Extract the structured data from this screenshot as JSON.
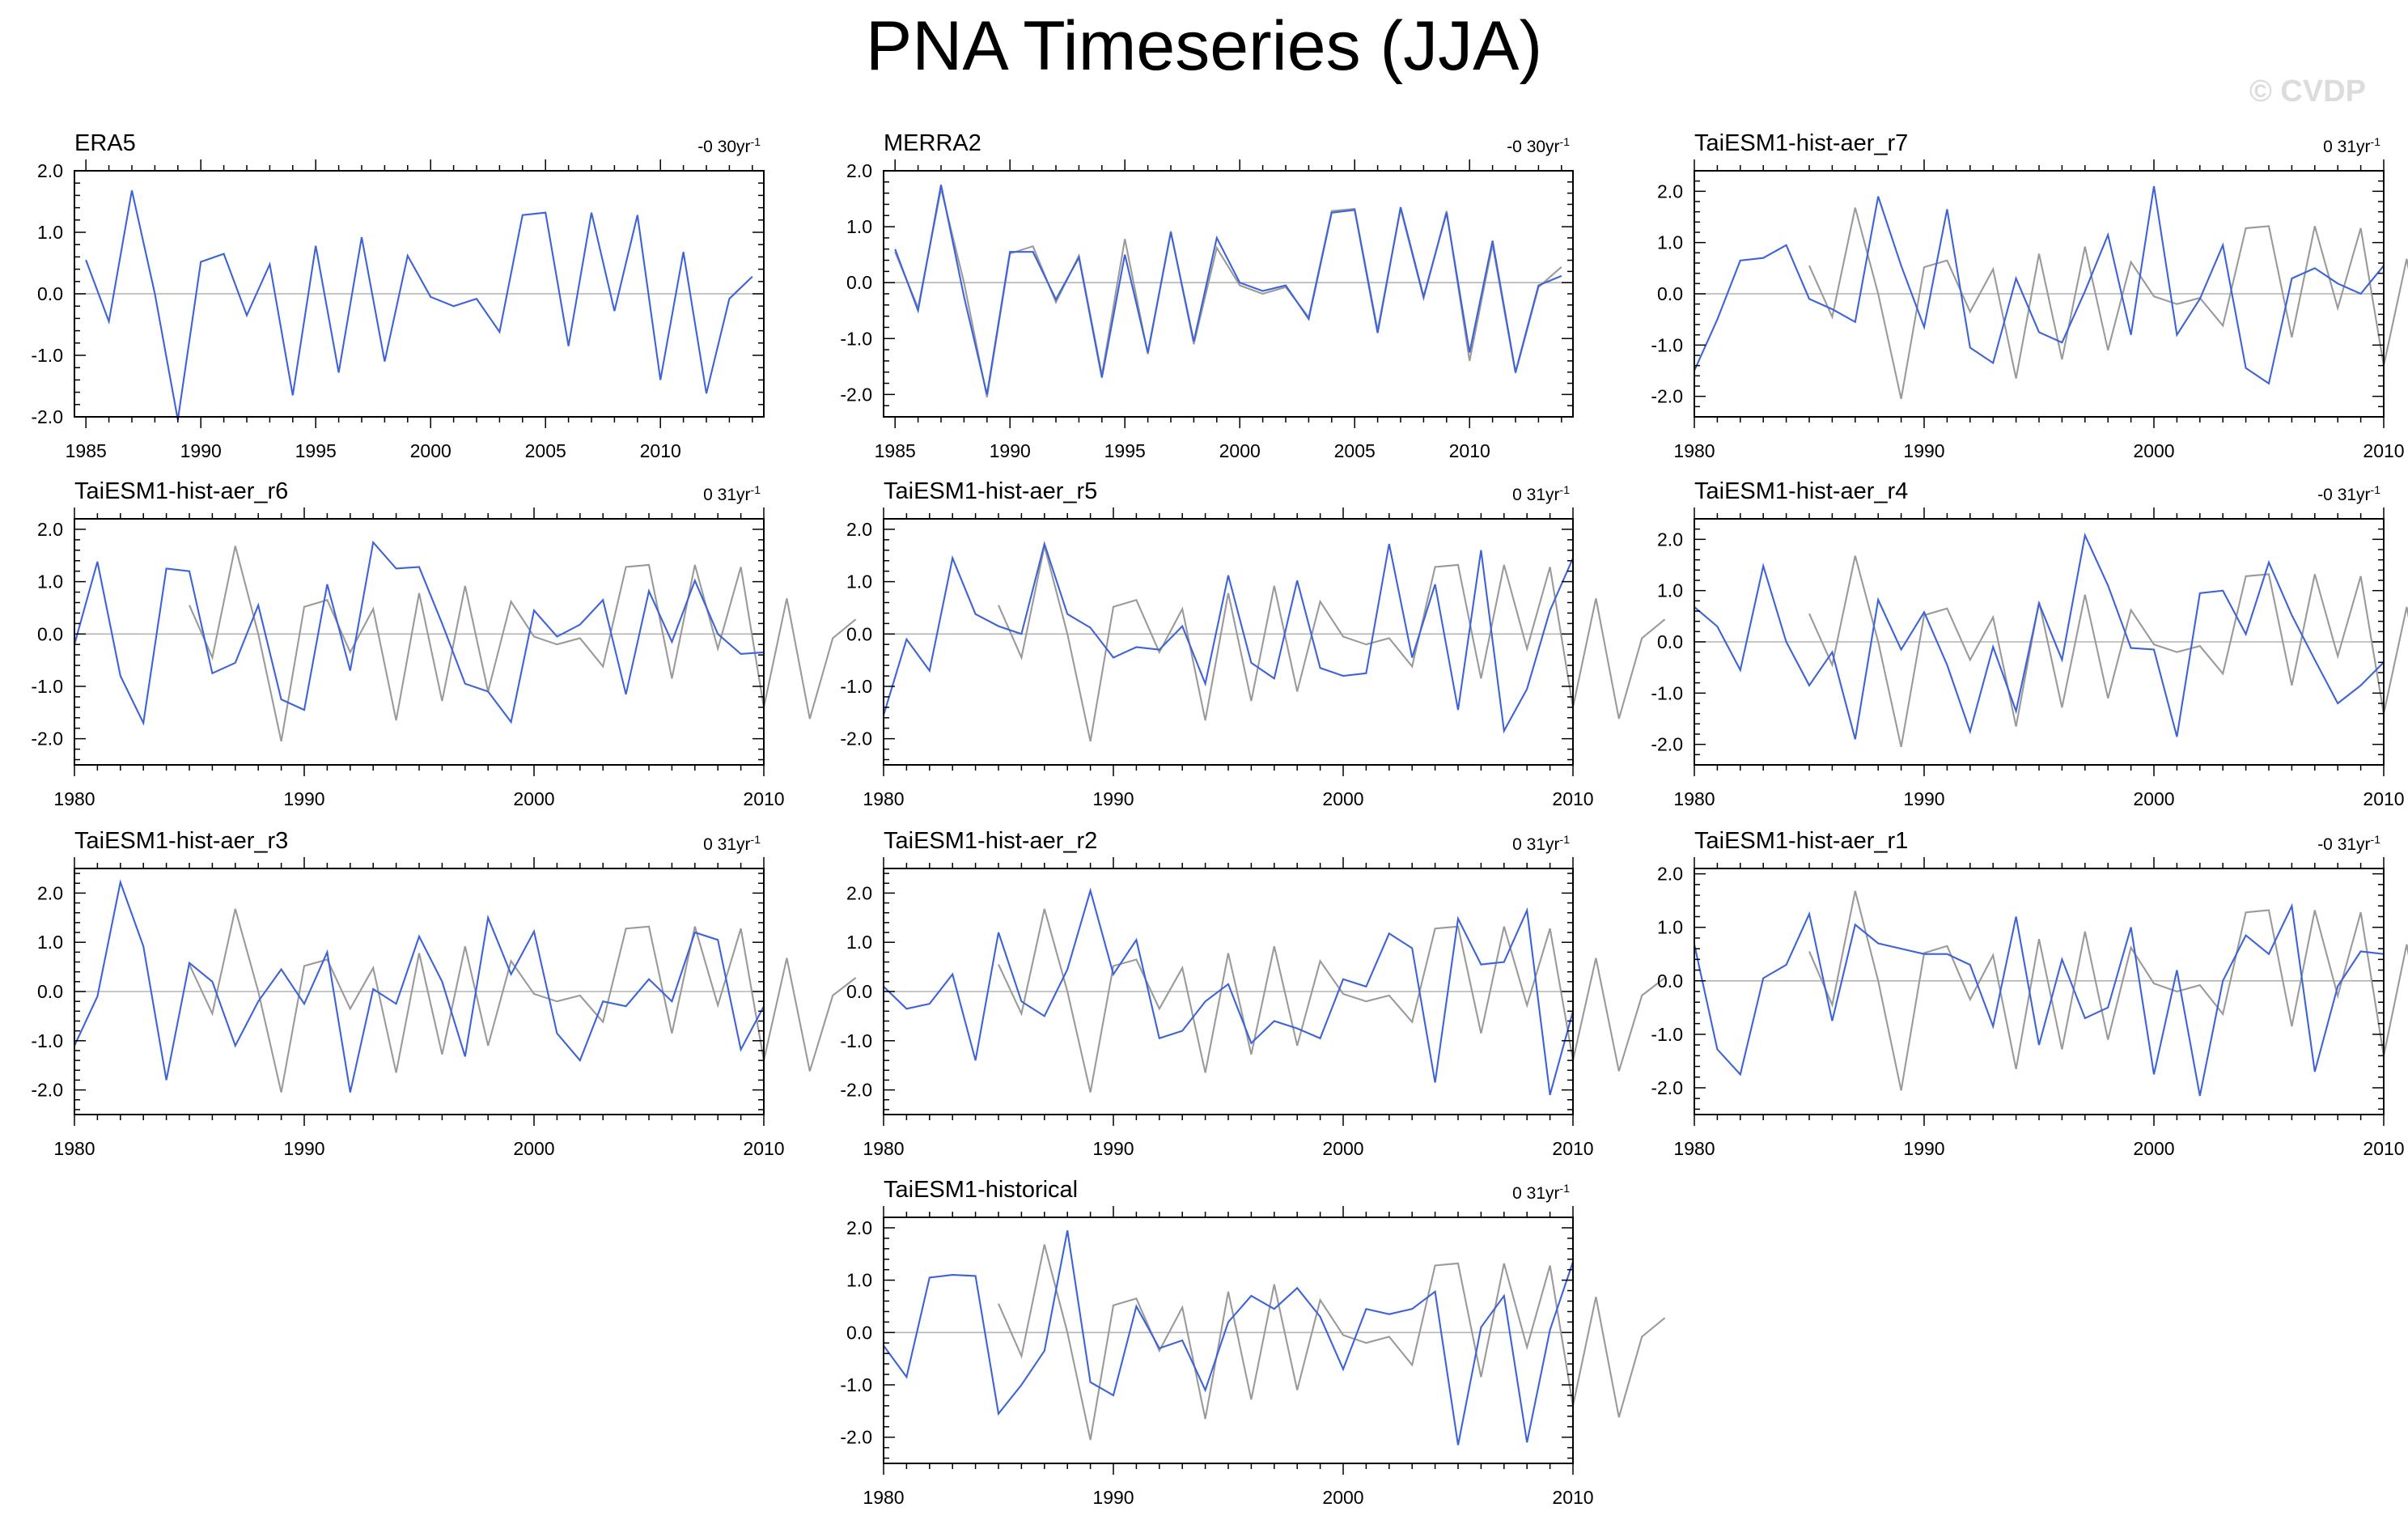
{
  "figure": {
    "title": "PNA Timeseries (JJA)",
    "watermark": "© CVDP",
    "colors": {
      "model_line": "#3d63d6",
      "obs_line": "#9a9a9a",
      "zero_line": "#b4b4b4",
      "axis": "#000000"
    }
  },
  "chart_data": [
    {
      "type": "line",
      "title": "ERA5",
      "trend_value": "-0 30yr",
      "trend_exp": "-1",
      "xlim": [
        1984.5,
        2014.5
      ],
      "ylim": [
        -2.0,
        2.0
      ],
      "xticks": [
        "1985",
        "1990",
        "1995",
        "2000",
        "2005",
        "2010"
      ],
      "yticks": [
        "2.0",
        "1.0",
        "0.0",
        "-1.0",
        "-2.0"
      ],
      "series": [
        {
          "name": "ERA5",
          "color": "#3d63d6",
          "start": 1985,
          "values": [
            0.55,
            -0.45,
            1.68,
            0.0,
            -2.05,
            0.52,
            0.65,
            -0.35,
            0.48,
            -1.65,
            0.78,
            -1.28,
            0.92,
            -1.1,
            0.62,
            -0.05,
            -0.2,
            -0.08,
            -0.62,
            1.28,
            1.32,
            -0.85,
            1.32,
            -0.28,
            1.28,
            -1.4,
            0.68,
            -1.62,
            -0.08,
            0.28
          ]
        }
      ]
    },
    {
      "type": "line",
      "title": "MERRA2",
      "trend_value": "-0 30yr",
      "trend_exp": "-1",
      "xlim": [
        1984.5,
        2014.5
      ],
      "ylim": [
        -2.4,
        2.0
      ],
      "xticks": [
        "1985",
        "1990",
        "1995",
        "2000",
        "2005",
        "2010"
      ],
      "yticks": [
        "2.0",
        "1.0",
        "0.0",
        "-1.0",
        "-2.0"
      ],
      "series": [
        {
          "name": "ERA5 (obs)",
          "color": "#9a9a9a",
          "start": 1985,
          "values": [
            0.55,
            -0.45,
            1.68,
            0.0,
            -2.05,
            0.52,
            0.65,
            -0.35,
            0.48,
            -1.65,
            0.78,
            -1.28,
            0.92,
            -1.1,
            0.62,
            -0.05,
            -0.2,
            -0.08,
            -0.62,
            1.28,
            1.32,
            -0.85,
            1.32,
            -0.28,
            1.28,
            -1.4,
            0.68,
            -1.62,
            -0.08,
            0.28
          ]
        },
        {
          "name": "MERRA2",
          "color": "#3d63d6",
          "start": 1985,
          "values": [
            0.6,
            -0.5,
            1.75,
            -0.25,
            -2.0,
            0.55,
            0.55,
            -0.3,
            0.45,
            -1.7,
            0.5,
            -1.25,
            0.9,
            -1.05,
            0.8,
            0.0,
            -0.15,
            -0.05,
            -0.65,
            1.25,
            1.3,
            -0.9,
            1.35,
            -0.25,
            1.25,
            -1.25,
            0.75,
            -1.6,
            -0.05,
            0.12
          ]
        }
      ]
    },
    {
      "type": "line",
      "title": "TaiESM1-hist-aer_r7",
      "trend_value": "0 31yr",
      "trend_exp": "-1",
      "xlim": [
        1980,
        2010
      ],
      "ylim": [
        -2.4,
        2.4
      ],
      "xticks": [
        "1980",
        "1990",
        "2000",
        "2010"
      ],
      "yticks": [
        "2.0",
        "1.0",
        "0.0",
        "-1.0",
        "-2.0"
      ],
      "series": [
        {
          "name": "ERA5 (obs)",
          "color": "#9a9a9a",
          "start": 1985,
          "values": [
            0.55,
            -0.45,
            1.68,
            0.0,
            -2.05,
            0.52,
            0.65,
            -0.35,
            0.48,
            -1.65,
            0.78,
            -1.28,
            0.92,
            -1.1,
            0.62,
            -0.05,
            -0.2,
            -0.08,
            -0.62,
            1.28,
            1.32,
            -0.85,
            1.32,
            -0.28,
            1.28,
            -1.4,
            0.68,
            -1.62,
            -0.08,
            0.28
          ]
        },
        {
          "name": "TaiESM1-hist-aer_r7",
          "color": "#3d63d6",
          "start": 1980,
          "values": [
            -1.5,
            -0.5,
            0.65,
            0.7,
            0.95,
            -0.1,
            -0.3,
            -0.55,
            1.9,
            0.55,
            -0.65,
            1.65,
            -1.05,
            -1.35,
            0.3,
            -0.75,
            -0.95,
            0.05,
            1.15,
            -0.8,
            2.1,
            -0.8,
            -0.1,
            0.95,
            -1.45,
            -1.75,
            0.3,
            0.5,
            0.2,
            0.0,
            0.55
          ]
        }
      ]
    },
    {
      "type": "line",
      "title": "TaiESM1-hist-aer_r6",
      "trend_value": "0 31yr",
      "trend_exp": "-1",
      "xlim": [
        1980,
        2010
      ],
      "ylim": [
        -2.5,
        2.2
      ],
      "xticks": [
        "1980",
        "1990",
        "2000",
        "2010"
      ],
      "yticks": [
        "2.0",
        "1.0",
        "0.0",
        "-1.0",
        "-2.0"
      ],
      "series": [
        {
          "name": "ERA5 (obs)",
          "color": "#9a9a9a",
          "start": 1985,
          "values": [
            0.55,
            -0.45,
            1.68,
            0.0,
            -2.05,
            0.52,
            0.65,
            -0.35,
            0.48,
            -1.65,
            0.78,
            -1.28,
            0.92,
            -1.1,
            0.62,
            -0.05,
            -0.2,
            -0.08,
            -0.62,
            1.28,
            1.32,
            -0.85,
            1.32,
            -0.28,
            1.28,
            -1.4,
            0.68,
            -1.62,
            -0.08,
            0.28
          ]
        },
        {
          "name": "TaiESM1-hist-aer_r6",
          "color": "#3d63d6",
          "start": 1980,
          "values": [
            -0.2,
            1.38,
            -0.8,
            -1.7,
            1.25,
            1.2,
            -0.75,
            -0.55,
            0.55,
            -1.25,
            -1.45,
            0.95,
            -0.7,
            1.75,
            1.25,
            1.28,
            0.2,
            -0.95,
            -1.1,
            -1.68,
            0.45,
            -0.05,
            0.18,
            0.65,
            -1.15,
            0.82,
            -0.15,
            1.02,
            0.0,
            -0.38,
            -0.35
          ]
        }
      ]
    },
    {
      "type": "line",
      "title": "TaiESM1-hist-aer_r5",
      "trend_value": "0 31yr",
      "trend_exp": "-1",
      "xlim": [
        1980,
        2010
      ],
      "ylim": [
        -2.5,
        2.2
      ],
      "xticks": [
        "1980",
        "1990",
        "2000",
        "2010"
      ],
      "yticks": [
        "2.0",
        "1.0",
        "0.0",
        "-1.0",
        "-2.0"
      ],
      "series": [
        {
          "name": "ERA5 (obs)",
          "color": "#9a9a9a",
          "start": 1985,
          "values": [
            0.55,
            -0.45,
            1.68,
            0.0,
            -2.05,
            0.52,
            0.65,
            -0.35,
            0.48,
            -1.65,
            0.78,
            -1.28,
            0.92,
            -1.1,
            0.62,
            -0.05,
            -0.2,
            -0.08,
            -0.62,
            1.28,
            1.32,
            -0.85,
            1.32,
            -0.28,
            1.28,
            -1.4,
            0.68,
            -1.62,
            -0.08,
            0.28
          ]
        },
        {
          "name": "TaiESM1-hist-aer_r5",
          "color": "#3d63d6",
          "start": 1980,
          "values": [
            -1.55,
            -0.1,
            -0.7,
            1.45,
            0.38,
            0.15,
            0.0,
            1.72,
            0.38,
            0.12,
            -0.45,
            -0.25,
            -0.3,
            0.15,
            -0.95,
            1.12,
            -0.55,
            -0.85,
            1.02,
            -0.65,
            -0.8,
            -0.75,
            1.72,
            -0.45,
            0.95,
            -1.45,
            1.6,
            -1.85,
            -1.05,
            0.45,
            1.45
          ]
        }
      ]
    },
    {
      "type": "line",
      "title": "TaiESM1-hist-aer_r4",
      "trend_value": "-0 31yr",
      "trend_exp": "-1",
      "xlim": [
        1980,
        2010
      ],
      "ylim": [
        -2.4,
        2.4
      ],
      "xticks": [
        "1980",
        "1990",
        "2000",
        "2010"
      ],
      "yticks": [
        "2.0",
        "1.0",
        "0.0",
        "-1.0",
        "-2.0"
      ],
      "series": [
        {
          "name": "ERA5 (obs)",
          "color": "#9a9a9a",
          "start": 1985,
          "values": [
            0.55,
            -0.45,
            1.68,
            0.0,
            -2.05,
            0.52,
            0.65,
            -0.35,
            0.48,
            -1.65,
            0.78,
            -1.28,
            0.92,
            -1.1,
            0.62,
            -0.05,
            -0.2,
            -0.08,
            -0.62,
            1.28,
            1.32,
            -0.85,
            1.32,
            -0.28,
            1.28,
            -1.4,
            0.68,
            -1.62,
            -0.08,
            0.28
          ]
        },
        {
          "name": "TaiESM1-hist-aer_r4",
          "color": "#3d63d6",
          "start": 1980,
          "values": [
            0.68,
            0.3,
            -0.55,
            1.48,
            0.0,
            -0.85,
            -0.2,
            -1.9,
            0.82,
            -0.15,
            0.58,
            -0.45,
            -1.75,
            -0.1,
            -1.35,
            0.75,
            -0.35,
            2.08,
            1.1,
            -0.12,
            -0.15,
            -1.85,
            0.95,
            1.0,
            0.15,
            1.55,
            0.52,
            -0.35,
            -1.2,
            -0.85,
            -0.4
          ]
        }
      ]
    },
    {
      "type": "line",
      "title": "TaiESM1-hist-aer_r3",
      "trend_value": "0 31yr",
      "trend_exp": "-1",
      "xlim": [
        1980,
        2010
      ],
      "ylim": [
        -2.5,
        2.5
      ],
      "xticks": [
        "1980",
        "1990",
        "2000",
        "2010"
      ],
      "yticks": [
        "2.0",
        "1.0",
        "0.0",
        "-1.0",
        "-2.0"
      ],
      "series": [
        {
          "name": "ERA5 (obs)",
          "color": "#9a9a9a",
          "start": 1985,
          "values": [
            0.55,
            -0.45,
            1.68,
            0.0,
            -2.05,
            0.52,
            0.65,
            -0.35,
            0.48,
            -1.65,
            0.78,
            -1.28,
            0.92,
            -1.1,
            0.62,
            -0.05,
            -0.2,
            -0.08,
            -0.62,
            1.28,
            1.32,
            -0.85,
            1.32,
            -0.28,
            1.28,
            -1.4,
            0.68,
            -1.62,
            -0.08,
            0.28
          ]
        },
        {
          "name": "TaiESM1-hist-aer_r3",
          "color": "#3d63d6",
          "start": 1980,
          "values": [
            -1.1,
            -0.1,
            2.22,
            0.92,
            -1.8,
            0.58,
            0.2,
            -1.1,
            -0.2,
            0.45,
            -0.25,
            0.8,
            -2.05,
            0.05,
            -0.25,
            1.12,
            0.2,
            -1.32,
            1.5,
            0.35,
            1.22,
            -0.85,
            -1.4,
            -0.2,
            -0.3,
            0.25,
            -0.2,
            1.2,
            1.05,
            -1.18,
            -0.3
          ]
        }
      ]
    },
    {
      "type": "line",
      "title": "TaiESM1-hist-aer_r2",
      "trend_value": "0 31yr",
      "trend_exp": "-1",
      "xlim": [
        1980,
        2010
      ],
      "ylim": [
        -2.5,
        2.5
      ],
      "xticks": [
        "1980",
        "1990",
        "2000",
        "2010"
      ],
      "yticks": [
        "2.0",
        "1.0",
        "0.0",
        "-1.0",
        "-2.0"
      ],
      "series": [
        {
          "name": "ERA5 (obs)",
          "color": "#9a9a9a",
          "start": 1985,
          "values": [
            0.55,
            -0.45,
            1.68,
            0.0,
            -2.05,
            0.52,
            0.65,
            -0.35,
            0.48,
            -1.65,
            0.78,
            -1.28,
            0.92,
            -1.1,
            0.62,
            -0.05,
            -0.2,
            -0.08,
            -0.62,
            1.28,
            1.32,
            -0.85,
            1.32,
            -0.28,
            1.28,
            -1.4,
            0.68,
            -1.62,
            -0.08,
            0.28
          ]
        },
        {
          "name": "TaiESM1-hist-aer_r2",
          "color": "#3d63d6",
          "start": 1980,
          "values": [
            0.1,
            -0.35,
            -0.25,
            0.35,
            -1.4,
            1.2,
            -0.2,
            -0.5,
            0.45,
            2.05,
            0.35,
            1.05,
            -0.95,
            -0.8,
            -0.2,
            0.15,
            -1.05,
            -0.6,
            -0.75,
            -0.95,
            0.25,
            0.1,
            1.18,
            0.88,
            -1.85,
            1.48,
            0.55,
            0.6,
            1.65,
            -2.1,
            -0.4
          ]
        }
      ]
    },
    {
      "type": "line",
      "title": "TaiESM1-hist-aer_r1",
      "trend_value": "-0 31yr",
      "trend_exp": "-1",
      "xlim": [
        1980,
        2010
      ],
      "ylim": [
        -2.5,
        2.1
      ],
      "xticks": [
        "1980",
        "1990",
        "2000",
        "2010"
      ],
      "yticks": [
        "2.0",
        "1.0",
        "0.0",
        "-1.0",
        "-2.0"
      ],
      "series": [
        {
          "name": "ERA5 (obs)",
          "color": "#9a9a9a",
          "start": 1985,
          "values": [
            0.55,
            -0.45,
            1.68,
            0.0,
            -2.05,
            0.52,
            0.65,
            -0.35,
            0.48,
            -1.65,
            0.78,
            -1.28,
            0.92,
            -1.1,
            0.62,
            -0.05,
            -0.2,
            -0.08,
            -0.62,
            1.28,
            1.32,
            -0.85,
            1.32,
            -0.28,
            1.28,
            -1.4,
            0.68,
            -1.62,
            -0.08,
            0.28
          ]
        },
        {
          "name": "TaiESM1-hist-aer_r1",
          "color": "#3d63d6",
          "start": 1980,
          "values": [
            0.68,
            -1.28,
            -1.75,
            0.05,
            0.3,
            1.25,
            -0.75,
            1.05,
            0.7,
            0.6,
            0.5,
            0.5,
            0.3,
            -0.85,
            1.2,
            -1.2,
            0.4,
            -0.7,
            -0.5,
            1.0,
            -1.75,
            0.2,
            -2.15,
            0.0,
            0.85,
            0.5,
            1.4,
            -1.7,
            -0.1,
            0.55,
            0.5
          ]
        }
      ]
    },
    {
      "type": "line",
      "title": "TaiESM1-historical",
      "trend_value": "0 31yr",
      "trend_exp": "-1",
      "xlim": [
        1980,
        2010
      ],
      "ylim": [
        -2.5,
        2.2
      ],
      "xticks": [
        "1980",
        "1990",
        "2000",
        "2010"
      ],
      "yticks": [
        "2.0",
        "1.0",
        "0.0",
        "-1.0",
        "-2.0"
      ],
      "series": [
        {
          "name": "ERA5 (obs)",
          "color": "#9a9a9a",
          "start": 1985,
          "values": [
            0.55,
            -0.45,
            1.68,
            0.0,
            -2.05,
            0.52,
            0.65,
            -0.35,
            0.48,
            -1.65,
            0.78,
            -1.28,
            0.92,
            -1.1,
            0.62,
            -0.05,
            -0.2,
            -0.08,
            -0.62,
            1.28,
            1.32,
            -0.85,
            1.32,
            -0.28,
            1.28,
            -1.4,
            0.68,
            -1.62,
            -0.08,
            0.28
          ]
        },
        {
          "name": "TaiESM1-historical",
          "color": "#3d63d6",
          "start": 1980,
          "values": [
            -0.25,
            -0.85,
            1.05,
            1.1,
            1.08,
            -1.55,
            -1.0,
            -0.35,
            1.95,
            -0.95,
            -1.2,
            0.5,
            -0.3,
            -0.15,
            -1.1,
            0.2,
            0.7,
            0.45,
            0.85,
            0.3,
            -0.7,
            0.45,
            0.35,
            0.45,
            0.78,
            -2.15,
            0.1,
            0.7,
            -2.1,
            0.05,
            1.35
          ]
        }
      ]
    }
  ]
}
